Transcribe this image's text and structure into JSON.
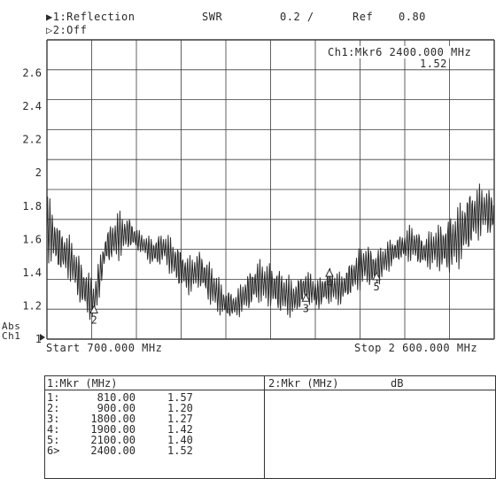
{
  "header": {
    "ch1_label": "▶1:Reflection",
    "ch2_label": "▷2:Off",
    "format": "SWR",
    "scale": "0.2 /",
    "ref_label": "Ref",
    "ref_value": "0.80"
  },
  "active_marker": {
    "label": "Ch1:Mkr6 2400.000 MHz",
    "value": "1.52"
  },
  "footer": {
    "abs_label": "Abs",
    "ch_label": "Ch1",
    "start": "Start 700.000 MHz",
    "stop": "Stop 2 600.000 MHz"
  },
  "chart_data": {
    "type": "line",
    "xlim": [
      700,
      2600
    ],
    "ylim": [
      1.0,
      2.8
    ],
    "x_unit": "MHz",
    "yticks": [
      "2.6",
      "2.4",
      "2.2",
      "2",
      "1.8",
      "1.6",
      "1.4",
      "1.2",
      "1"
    ],
    "grid": true,
    "series": [
      {
        "x": [
          700,
          750,
          800,
          850,
          900,
          950,
          1000,
          1050,
          1100,
          1150,
          1200,
          1250,
          1300,
          1350,
          1400,
          1450,
          1500,
          1550,
          1600,
          1650,
          1700,
          1750,
          1800,
          1850,
          1900,
          1950,
          2000,
          2050,
          2100,
          2150,
          2200,
          2250,
          2300,
          2350,
          2400,
          2450,
          2500,
          2550,
          2600
        ],
        "y": [
          1.68,
          1.55,
          1.48,
          1.32,
          1.22,
          1.55,
          1.62,
          1.64,
          1.58,
          1.52,
          1.55,
          1.45,
          1.38,
          1.42,
          1.32,
          1.22,
          1.2,
          1.28,
          1.35,
          1.32,
          1.28,
          1.24,
          1.32,
          1.27,
          1.32,
          1.3,
          1.38,
          1.45,
          1.42,
          1.5,
          1.55,
          1.58,
          1.52,
          1.55,
          1.55,
          1.62,
          1.72,
          1.78,
          1.75
        ],
        "ripple": [
          0.22,
          0.15,
          0.14,
          0.16,
          0.14,
          0.1,
          0.16,
          0.1,
          0.06,
          0.1,
          0.1,
          0.14,
          0.12,
          0.12,
          0.14,
          0.1,
          0.08,
          0.12,
          0.14,
          0.14,
          0.14,
          0.12,
          0.1,
          0.1,
          0.12,
          0.1,
          0.12,
          0.14,
          0.12,
          0.1,
          0.08,
          0.12,
          0.1,
          0.14,
          0.18,
          0.2,
          0.2,
          0.16,
          0.14
        ]
      }
    ],
    "markers": [
      {
        "label": "2",
        "x": 900,
        "y": 1.2
      },
      {
        "label": "3",
        "x": 1800,
        "y": 1.27
      },
      {
        "label": "4",
        "x": 1900,
        "y": 1.42
      },
      {
        "label": "5",
        "x": 2100,
        "y": 1.4
      }
    ]
  },
  "marker_table": {
    "ch1_header": "1:Mkr (MHz)",
    "ch2_header": "2:Mkr (MHz)",
    "ch2_unit": "dB",
    "rows": [
      {
        "id": "1:",
        "freq": "810.00",
        "value": "1.57"
      },
      {
        "id": "2:",
        "freq": "900.00",
        "value": "1.20"
      },
      {
        "id": "3:",
        "freq": "1800.00",
        "value": "1.27"
      },
      {
        "id": "4:",
        "freq": "1900.00",
        "value": "1.42"
      },
      {
        "id": "5:",
        "freq": "2100.00",
        "value": "1.40"
      },
      {
        "id": "6>",
        "freq": "2400.00",
        "value": "1.52"
      }
    ]
  }
}
